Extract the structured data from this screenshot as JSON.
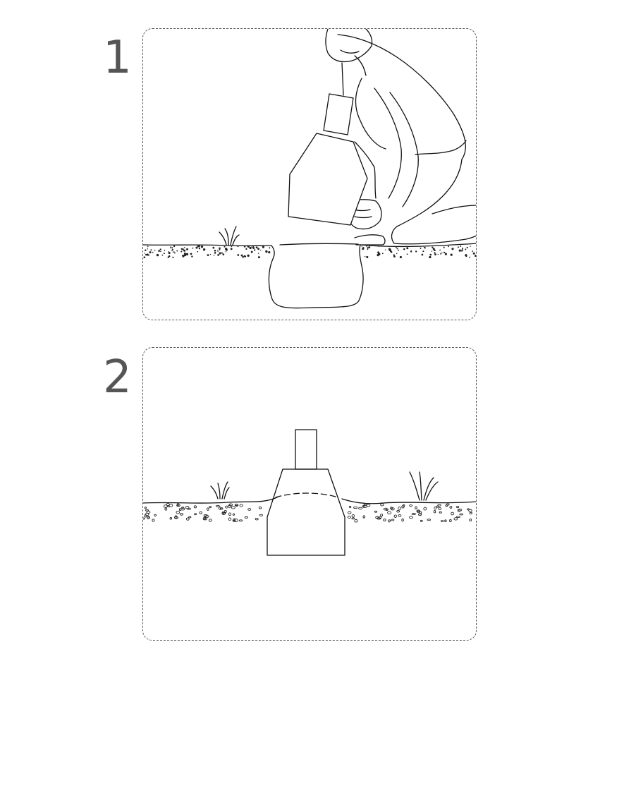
{
  "steps": [
    {
      "number": "1"
    },
    {
      "number": "2"
    }
  ],
  "colors": {
    "line": "#111111",
    "step_number": "#555555",
    "panel_border": "#555555",
    "background": "#ffffff"
  },
  "icons": [
    "person-icon",
    "filter-unit-icon",
    "grass-tuft-icon",
    "soil-icon",
    "hole-icon"
  ]
}
